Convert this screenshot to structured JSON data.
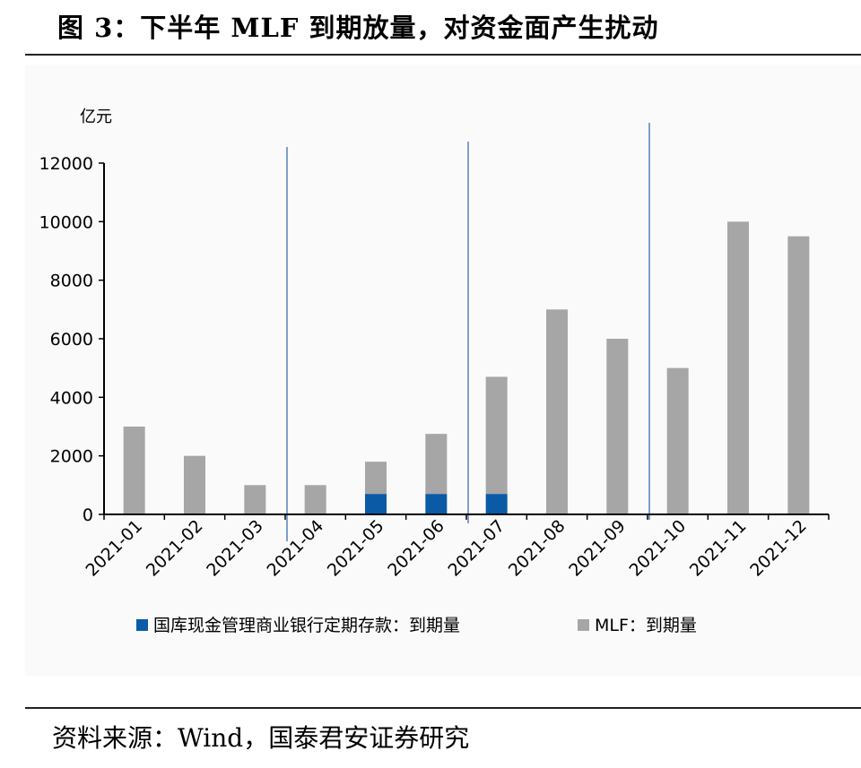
{
  "title": "图 3：下半年 MLF 到期放量，对资金面产生扰动",
  "source": "资料来源：Wind，国泰君安证券研究",
  "chart_data": {
    "type": "bar",
    "stacked": true,
    "ylabel": "亿元",
    "ylim": [
      0,
      12000
    ],
    "yticks": [
      0,
      2000,
      4000,
      6000,
      8000,
      10000,
      12000
    ],
    "categories": [
      "2021-01",
      "2021-02",
      "2021-03",
      "2021-04",
      "2021-05",
      "2021-06",
      "2021-07",
      "2021-08",
      "2021-09",
      "2021-10",
      "2021-11",
      "2021-12"
    ],
    "series": [
      {
        "name": "国库现金管理商业银行定期存款：到期量",
        "color": "#0b5aa6",
        "values": [
          0,
          0,
          0,
          0,
          700,
          700,
          700,
          0,
          0,
          0,
          0,
          0
        ]
      },
      {
        "name": "MLF：到期量",
        "color": "#a6a6a6",
        "values": [
          3000,
          2000,
          1000,
          1000,
          1100,
          2050,
          4000,
          7000,
          6000,
          5000,
          10000,
          9500
        ]
      }
    ],
    "dividers_after": [
      "2021-03",
      "2021-06",
      "2021-09"
    ],
    "legend_position": "bottom",
    "grid": false
  }
}
